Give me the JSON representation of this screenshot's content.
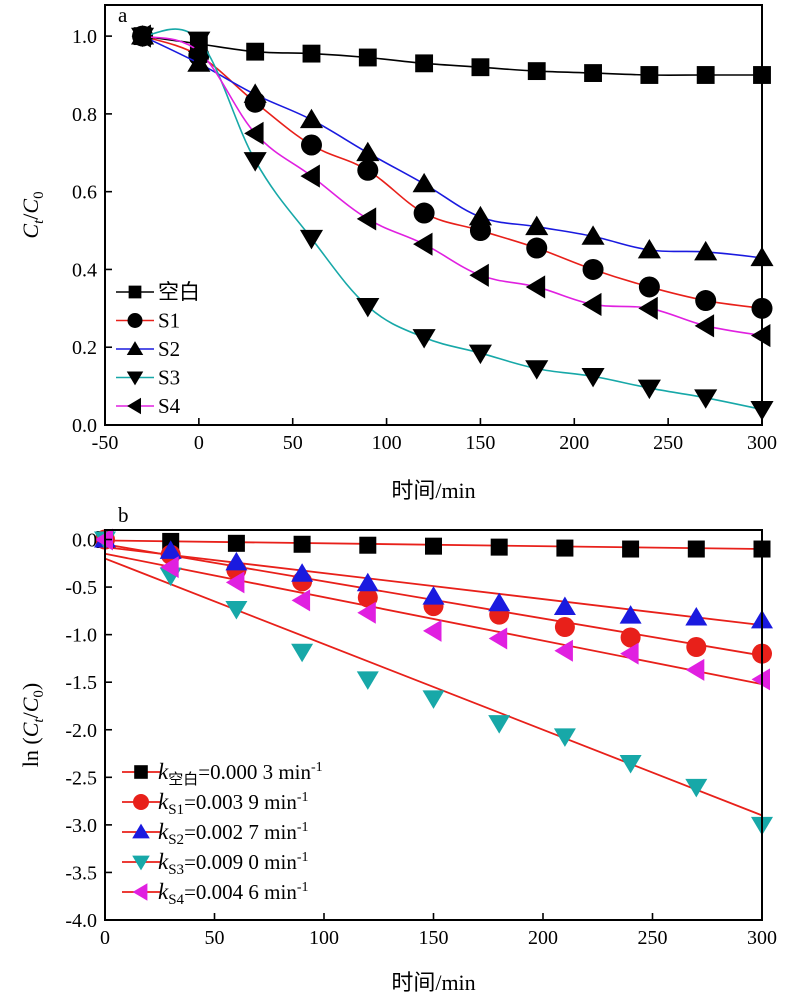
{
  "chart_data": [
    {
      "type": "line",
      "panel_label": "a",
      "xlabel": "时间/min",
      "ylabel_main": "C",
      "ylabel_sub1": "t",
      "ylabel_sep": "/",
      "ylabel_main2": "C",
      "ylabel_sub2": "0",
      "xlim": [
        -50,
        300
      ],
      "ylim": [
        0.0,
        1.08
      ],
      "xticks": [
        "-50",
        "0",
        "50",
        "100",
        "150",
        "200",
        "250",
        "300"
      ],
      "xtick_values": [
        -50,
        0,
        50,
        100,
        150,
        200,
        250,
        300
      ],
      "yticks": [
        "0.0",
        "0.2",
        "0.4",
        "0.6",
        "0.8",
        "1.0"
      ],
      "ytick_values": [
        0.0,
        0.2,
        0.4,
        0.6,
        0.8,
        1.0
      ],
      "legend_position": "bottom-left",
      "series": [
        {
          "name": "空白",
          "color": "#000000",
          "marker": "square",
          "x": [
            -30,
            0,
            30,
            60,
            90,
            120,
            150,
            180,
            210,
            240,
            270,
            300
          ],
          "y": [
            1.0,
            0.98,
            0.96,
            0.955,
            0.945,
            0.93,
            0.92,
            0.91,
            0.905,
            0.9,
            0.9,
            0.9
          ]
        },
        {
          "name": "S1",
          "color": "#e8201a",
          "marker": "circle",
          "x": [
            -30,
            0,
            30,
            60,
            90,
            120,
            150,
            180,
            210,
            240,
            270,
            300
          ],
          "y": [
            1.0,
            0.95,
            0.83,
            0.72,
            0.655,
            0.545,
            0.5,
            0.455,
            0.4,
            0.355,
            0.32,
            0.3
          ]
        },
        {
          "name": "S2",
          "color": "#1a1adf",
          "marker": "triangle-up",
          "x": [
            -30,
            0,
            30,
            60,
            90,
            120,
            150,
            180,
            210,
            240,
            270,
            300
          ],
          "y": [
            1.0,
            0.93,
            0.85,
            0.785,
            0.7,
            0.62,
            0.535,
            0.51,
            0.485,
            0.45,
            0.445,
            0.43
          ]
        },
        {
          "name": "S3",
          "color": "#17a8a8",
          "marker": "triangle-down",
          "x": [
            -30,
            0,
            30,
            60,
            90,
            120,
            150,
            180,
            210,
            240,
            270,
            300
          ],
          "y": [
            1.0,
            0.99,
            0.68,
            0.48,
            0.305,
            0.225,
            0.185,
            0.145,
            0.125,
            0.095,
            0.07,
            0.04
          ]
        },
        {
          "name": "S4",
          "color": "#e020e0",
          "marker": "triangle-left",
          "x": [
            -30,
            0,
            30,
            60,
            90,
            120,
            150,
            180,
            210,
            240,
            270,
            300
          ],
          "y": [
            1.0,
            0.96,
            0.75,
            0.64,
            0.53,
            0.465,
            0.385,
            0.355,
            0.31,
            0.3,
            0.255,
            0.23
          ]
        }
      ]
    },
    {
      "type": "scatter",
      "panel_label": "b",
      "xlabel": "时间/min",
      "ylabel_prefix": "ln (",
      "ylabel_main": "C",
      "ylabel_sub1": "t",
      "ylabel_sep": "/",
      "ylabel_main2": "C",
      "ylabel_sub2": "0",
      "ylabel_suffix": ")",
      "xlim": [
        0,
        300
      ],
      "ylim": [
        -4.0,
        0.1
      ],
      "xticks": [
        "0",
        "50",
        "100",
        "150",
        "200",
        "250",
        "300"
      ],
      "xtick_values": [
        0,
        50,
        100,
        150,
        200,
        250,
        300
      ],
      "yticks": [
        "0.0",
        "-0.5",
        "-1.0",
        "-1.5",
        "-2.0",
        "-2.5",
        "-3.0",
        "-3.5",
        "-4.0"
      ],
      "ytick_values": [
        0.0,
        -0.5,
        -1.0,
        -1.5,
        -2.0,
        -2.5,
        -3.0,
        -3.5,
        -4.0
      ],
      "legend_position": "bottom-left",
      "fit_line_color": "#e8201a",
      "series": [
        {
          "k_label": "k",
          "k_sub": "空白",
          "k_value": "=0.000 3 min",
          "k_sup": "-1",
          "color": "#000000",
          "marker": "square",
          "x": [
            0,
            30,
            60,
            90,
            120,
            150,
            180,
            210,
            240,
            270,
            300
          ],
          "y": [
            0.0,
            -0.02,
            -0.04,
            -0.05,
            -0.06,
            -0.07,
            -0.08,
            -0.09,
            -0.1,
            -0.1,
            -0.1
          ],
          "fit": [
            [
              0,
              -0.01
            ],
            [
              300,
              -0.1
            ]
          ]
        },
        {
          "k_label": "k",
          "k_sub": "S1",
          "k_value": "=0.003 9 min",
          "k_sup": "-1",
          "color": "#e8201a",
          "marker": "circle",
          "x": [
            0,
            30,
            60,
            90,
            120,
            150,
            180,
            210,
            240,
            270,
            300
          ],
          "y": [
            0.0,
            -0.16,
            -0.32,
            -0.44,
            -0.61,
            -0.7,
            -0.79,
            -0.92,
            -1.03,
            -1.13,
            -1.2
          ],
          "fit": [
            [
              0,
              -0.05
            ],
            [
              300,
              -1.22
            ]
          ]
        },
        {
          "k_label": "k",
          "k_sub": "S2",
          "k_value": "=0.002 7 min",
          "k_sup": "-1",
          "color": "#1a1adf",
          "marker": "triangle-up",
          "x": [
            0,
            30,
            60,
            90,
            120,
            150,
            180,
            210,
            240,
            270,
            300
          ],
          "y": [
            0.0,
            -0.12,
            -0.24,
            -0.36,
            -0.46,
            -0.6,
            -0.67,
            -0.71,
            -0.8,
            -0.82,
            -0.85
          ],
          "fit": [
            [
              0,
              -0.08
            ],
            [
              300,
              -0.9
            ]
          ]
        },
        {
          "k_label": "k",
          "k_sub": "S3",
          "k_value": "=0.009 0 min",
          "k_sup": "-1",
          "color": "#17a8a8",
          "marker": "triangle-down",
          "x": [
            0,
            30,
            60,
            90,
            120,
            150,
            180,
            210,
            240,
            270,
            300
          ],
          "y": [
            0.0,
            -0.38,
            -0.73,
            -1.18,
            -1.47,
            -1.67,
            -1.93,
            -2.07,
            -2.35,
            -2.6,
            -3.0
          ],
          "fit": [
            [
              0,
              -0.2
            ],
            [
              300,
              -2.9
            ]
          ]
        },
        {
          "k_label": "k",
          "k_sub": "S4",
          "k_value": "=0.004 6 min",
          "k_sup": "-1",
          "color": "#e020e0",
          "marker": "triangle-left",
          "x": [
            0,
            30,
            60,
            90,
            120,
            150,
            180,
            210,
            240,
            270,
            300
          ],
          "y": [
            0.0,
            -0.29,
            -0.45,
            -0.64,
            -0.77,
            -0.96,
            -1.04,
            -1.17,
            -1.2,
            -1.37,
            -1.47
          ],
          "fit": [
            [
              0,
              -0.15
            ],
            [
              300,
              -1.52
            ]
          ]
        }
      ]
    }
  ]
}
